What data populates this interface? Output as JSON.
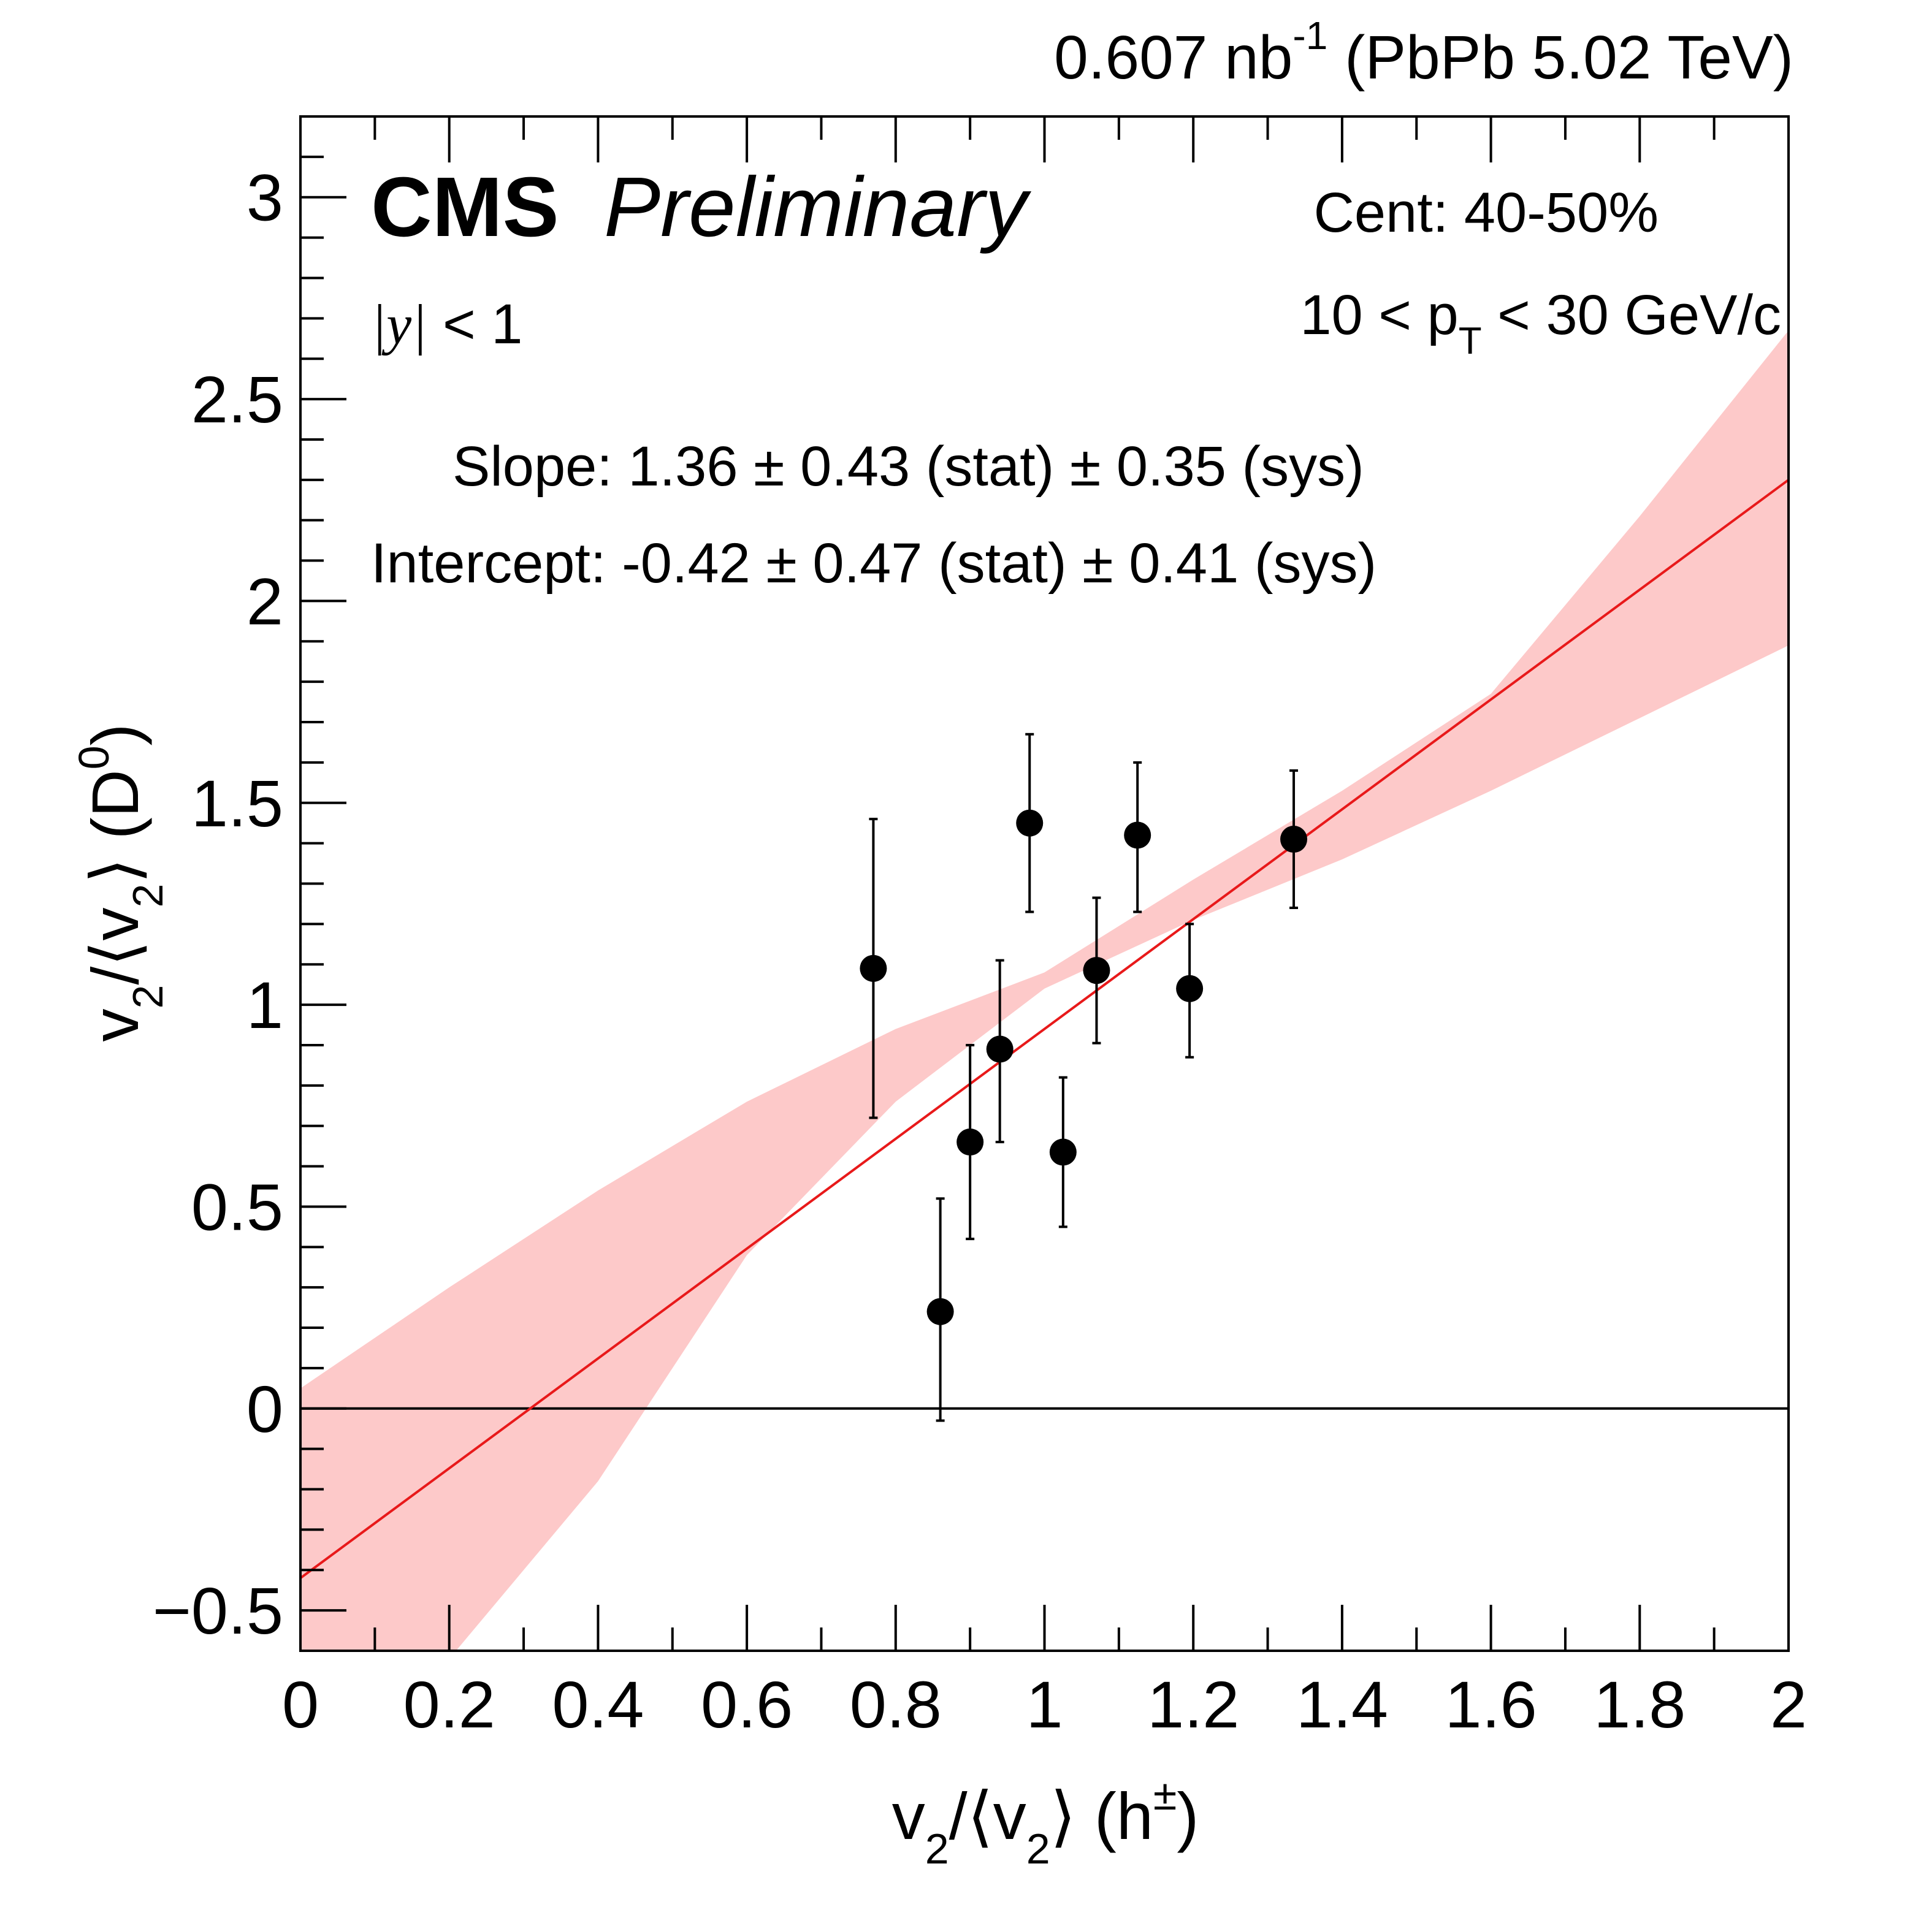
{
  "header": {
    "lumi_value": "0.607 nb",
    "lumi_exp": "-1",
    "lumi_system": " (PbPb 5.02 TeV)"
  },
  "labels": {
    "cms": "CMS",
    "preliminary": "Preliminary",
    "rapidity_y": "y",
    "rapidity_rest": " < 1",
    "centrality": "Cent: 40-50%",
    "pt_left": "10 < p",
    "pt_sub": "T",
    "pt_right": " < 30 GeV/c",
    "slope": "Slope: 1.36 ± 0.43 (stat) ± 0.35 (sys)",
    "intercept": "Intercept: -0.42 ± 0.47 (stat) ± 0.41 (sys)"
  },
  "chart_data": {
    "type": "scatter",
    "title": "",
    "xlabel": "v2/⟨v2⟩ (h±)",
    "ylabel": "v2/⟨v2⟩ (D0)",
    "xlim": [
      0,
      2
    ],
    "ylim": [
      -0.6,
      3.2
    ],
    "x_ticks": [
      0,
      0.2,
      0.4,
      0.6,
      0.8,
      1,
      1.2,
      1.4,
      1.6,
      1.8,
      2
    ],
    "x_tick_labels": [
      "0",
      "0.2",
      "0.4",
      "0.6",
      "0.8",
      "1",
      "1.2",
      "1.4",
      "1.6",
      "1.8",
      "2"
    ],
    "y_ticks": [
      -0.5,
      0,
      0.5,
      1,
      1.5,
      2,
      2.5,
      3
    ],
    "y_tick_labels": [
      "−0.5",
      "0",
      "0.5",
      "1",
      "1.5",
      "2",
      "2.5",
      "3"
    ],
    "grid": false,
    "series": [
      {
        "points": [
          {
            "x": 0.77,
            "y": 1.09,
            "err_low": 0.37,
            "err_high": 0.37
          },
          {
            "x": 0.86,
            "y": 0.24,
            "err_low": 0.27,
            "err_high": 0.28
          },
          {
            "x": 0.9,
            "y": 0.66,
            "err_low": 0.24,
            "err_high": 0.24
          },
          {
            "x": 0.94,
            "y": 0.89,
            "err_low": 0.23,
            "err_high": 0.22
          },
          {
            "x": 0.98,
            "y": 1.45,
            "err_low": 0.22,
            "err_high": 0.22
          },
          {
            "x": 1.025,
            "y": 0.635,
            "err_low": 0.185,
            "err_high": 0.185
          },
          {
            "x": 1.07,
            "y": 1.085,
            "err_low": 0.18,
            "err_high": 0.18
          },
          {
            "x": 1.125,
            "y": 1.42,
            "err_low": 0.19,
            "err_high": 0.18
          },
          {
            "x": 1.195,
            "y": 1.04,
            "err_low": 0.17,
            "err_high": 0.16
          },
          {
            "x": 1.335,
            "y": 1.41,
            "err_low": 0.17,
            "err_high": 0.17
          }
        ]
      }
    ],
    "fit": {
      "slope": 1.36,
      "intercept": -0.42,
      "x_range": [
        0,
        2
      ],
      "color": "#e8191a"
    },
    "band": {
      "color": "#fdc9c9",
      "upper": [
        [
          0,
          0.05
        ],
        [
          0.2,
          0.3
        ],
        [
          0.4,
          0.54
        ],
        [
          0.6,
          0.76
        ],
        [
          0.8,
          0.94
        ],
        [
          1.0,
          1.08
        ],
        [
          1.2,
          1.31
        ],
        [
          1.4,
          1.53
        ],
        [
          1.6,
          1.77
        ],
        [
          1.8,
          2.21
        ],
        [
          2.0,
          2.67
        ]
      ],
      "lower": [
        [
          0,
          -0.62
        ],
        [
          0.2,
          -0.62
        ],
        [
          0.4,
          -0.18
        ],
        [
          0.6,
          0.38
        ],
        [
          0.8,
          0.76
        ],
        [
          1.0,
          1.04
        ],
        [
          1.2,
          1.21
        ],
        [
          1.4,
          1.36
        ],
        [
          1.6,
          1.53
        ],
        [
          1.8,
          1.71
        ],
        [
          2.0,
          1.89
        ]
      ]
    },
    "zero_line": true
  }
}
